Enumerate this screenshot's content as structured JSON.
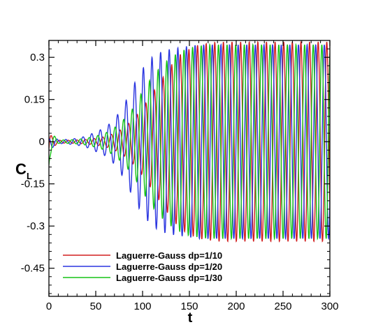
{
  "chart_data": {
    "type": "line",
    "xlabel": "t",
    "ylabel": "C",
    "ylabel_subscript": "L",
    "xlim": [
      0,
      300
    ],
    "ylim": [
      -0.55,
      0.36
    ],
    "x_ticks": [
      "0",
      "50",
      "100",
      "150",
      "200",
      "250",
      "300"
    ],
    "y_ticks": [
      "0.3",
      "0.15",
      "0",
      "-0.15",
      "-0.3",
      "-0.45"
    ],
    "grid": false,
    "legend_position": "bottom-left",
    "envelope_x": [
      0,
      10,
      20,
      30,
      40,
      50,
      60,
      70,
      80,
      90,
      100,
      110,
      120,
      130,
      140,
      150,
      160,
      170,
      180,
      200,
      300
    ],
    "series": [
      {
        "name": "Laguerre-Gauss dp=1/10",
        "color": "#d21e1e",
        "period": 9.2,
        "phase": 0.0,
        "envelope": [
          0.03,
          0.005,
          0.005,
          0.006,
          0.008,
          0.012,
          0.018,
          0.03,
          0.05,
          0.08,
          0.12,
          0.17,
          0.22,
          0.27,
          0.31,
          0.33,
          0.345,
          0.35,
          0.355,
          0.355,
          0.355
        ]
      },
      {
        "name": "Laguerre-Gauss dp=1/20",
        "color": "#2a35e0",
        "period": 9.2,
        "phase": 1.8,
        "envelope": [
          0.03,
          0.006,
          0.008,
          0.012,
          0.02,
          0.035,
          0.05,
          0.08,
          0.13,
          0.2,
          0.26,
          0.3,
          0.32,
          0.33,
          0.335,
          0.34,
          0.345,
          0.345,
          0.345,
          0.345,
          0.345
        ]
      },
      {
        "name": "Laguerre-Gauss dp=1/30",
        "color": "#16c416",
        "period": 9.2,
        "phase": 3.6,
        "envelope": [
          0.04,
          0.006,
          0.006,
          0.008,
          0.012,
          0.02,
          0.03,
          0.05,
          0.08,
          0.12,
          0.18,
          0.23,
          0.27,
          0.3,
          0.32,
          0.335,
          0.34,
          0.345,
          0.345,
          0.345,
          0.345
        ]
      }
    ]
  }
}
